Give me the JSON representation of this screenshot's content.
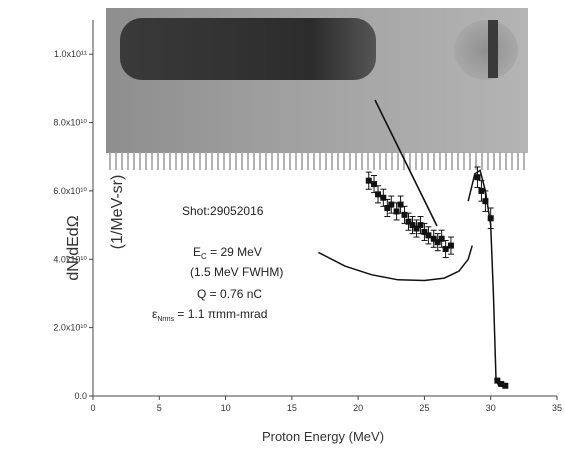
{
  "chart_data": {
    "type": "scatter",
    "xlabel": "Proton Energy (MeV)",
    "ylabel": "dN/dEdΩ",
    "ylabel_units": "(1/MeV-sr)",
    "xlim": [
      0,
      35
    ],
    "ylim": [
      0,
      110000000000.0
    ],
    "x_ticks": [
      0,
      5,
      10,
      15,
      20,
      25,
      30,
      35
    ],
    "x_tick_labels": [
      "0",
      "5",
      "10",
      "15",
      "20",
      "25",
      "30",
      "35"
    ],
    "y_ticks": [
      0,
      20000000000.0,
      40000000000.0,
      60000000000.0,
      80000000000.0,
      100000000000.0
    ],
    "y_tick_labels": [
      "0.0",
      "2.0x10¹⁰",
      "4.0x10¹⁰",
      "6.0x10¹⁰",
      "8.0x10¹⁰",
      "1.0x10¹¹"
    ],
    "series": [
      {
        "marker": "square",
        "points": [
          {
            "x": 20.8,
            "y": 63000000000.0,
            "err": 2500000000.0
          },
          {
            "x": 21.2,
            "y": 62000000000.0,
            "err": 2500000000.0
          },
          {
            "x": 21.5,
            "y": 59000000000.0,
            "err": 2500000000.0
          },
          {
            "x": 21.9,
            "y": 58000000000.0,
            "err": 2500000000.0
          },
          {
            "x": 22.2,
            "y": 55000000000.0,
            "err": 2500000000.0
          },
          {
            "x": 22.5,
            "y": 56000000000.0,
            "err": 2500000000.0
          },
          {
            "x": 22.9,
            "y": 54000000000.0,
            "err": 2500000000.0
          },
          {
            "x": 23.2,
            "y": 56000000000.0,
            "err": 2500000000.0
          },
          {
            "x": 23.5,
            "y": 53000000000.0,
            "err": 2500000000.0
          },
          {
            "x": 23.8,
            "y": 51000000000.0,
            "err": 2500000000.0
          },
          {
            "x": 24.1,
            "y": 50000000000.0,
            "err": 2500000000.0
          },
          {
            "x": 24.4,
            "y": 49000000000.0,
            "err": 2500000000.0
          },
          {
            "x": 24.7,
            "y": 50000000000.0,
            "err": 2500000000.0
          },
          {
            "x": 25.0,
            "y": 48000000000.0,
            "err": 2500000000.0
          },
          {
            "x": 25.3,
            "y": 47000000000.0,
            "err": 2500000000.0
          },
          {
            "x": 25.7,
            "y": 46000000000.0,
            "err": 2500000000.0
          },
          {
            "x": 26.0,
            "y": 45000000000.0,
            "err": 2500000000.0
          },
          {
            "x": 26.3,
            "y": 46000000000.0,
            "err": 2500000000.0
          },
          {
            "x": 26.6,
            "y": 43000000000.0,
            "err": 2500000000.0
          },
          {
            "x": 27.0,
            "y": 44000000000.0,
            "err": 2500000000.0
          },
          {
            "x": 29.0,
            "y": 64000000000.0,
            "err": 3000000000.0
          },
          {
            "x": 29.3,
            "y": 60000000000.0,
            "err": 3000000000.0
          },
          {
            "x": 29.6,
            "y": 57000000000.0,
            "err": 3000000000.0
          },
          {
            "x": 30.0,
            "y": 52000000000.0,
            "err": 3000000000.0
          },
          {
            "x": 30.5,
            "y": 4500000000.0,
            "err": 0
          },
          {
            "x": 30.8,
            "y": 3500000000.0,
            "err": 0
          },
          {
            "x": 31.1,
            "y": 3000000000.0,
            "err": 0
          }
        ]
      }
    ],
    "guide_curve": [
      [
        17.0,
        42000000000.0
      ],
      [
        19.0,
        38000000000.0
      ],
      [
        21.0,
        35500000000.0
      ],
      [
        23.0,
        34000000000.0
      ],
      [
        25.0,
        33800000000.0
      ],
      [
        26.5,
        34500000000.0
      ],
      [
        27.6,
        36500000000.0
      ],
      [
        28.3,
        40000000000.0
      ],
      [
        28.6,
        44000000000.0
      ]
    ],
    "falloff_curve": [
      [
        28.3,
        57000000000.0
      ],
      [
        28.8,
        65000000000.0
      ],
      [
        29.2,
        66000000000.0
      ],
      [
        29.6,
        60000000000.0
      ],
      [
        30.0,
        50000000000.0
      ],
      [
        30.2,
        30000000000.0
      ],
      [
        30.4,
        5000000000.0
      ],
      [
        30.6,
        3000000000.0
      ]
    ],
    "annotations": {
      "shot": "Shot:29052016",
      "energy_pre": "E",
      "energy_sub": "C",
      "energy_post": " = 29 MeV",
      "fwhm": "(1.5 MeV FWHM)",
      "charge": "Q = 0.76 nC",
      "emit_pre": "ε",
      "emit_sub": "Nrms",
      "emit_post": " = 1.1   πmm-mrad"
    }
  }
}
